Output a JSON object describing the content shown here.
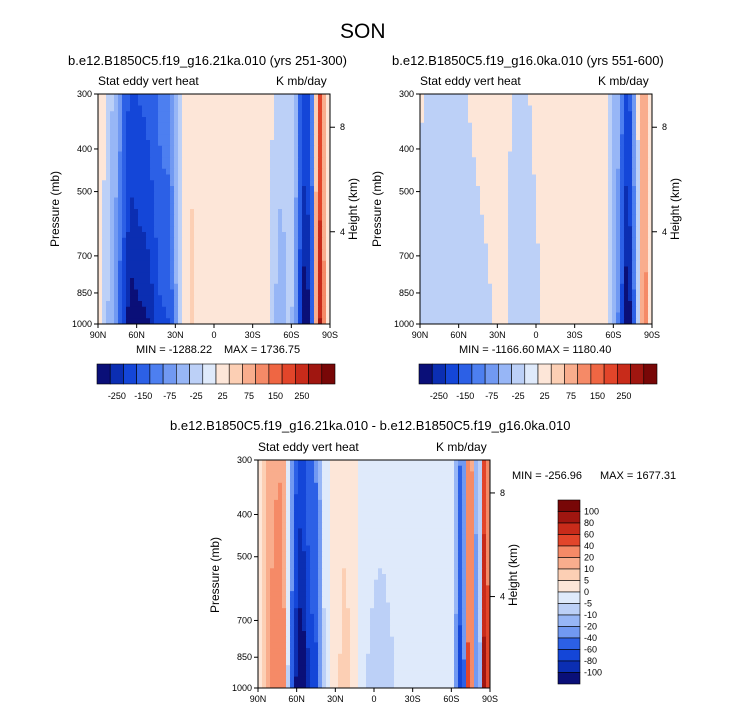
{
  "figure": {
    "title": "SON"
  },
  "palette": {
    "blues": [
      "#0a0f78",
      "#0b2eb2",
      "#1446d8",
      "#2c60e6",
      "#4d7ff0",
      "#7199f2",
      "#97b6f6",
      "#bcd0f7",
      "#dfeafb"
    ],
    "reds": [
      "#fde6d8",
      "#fccfb4",
      "#f9ad8d",
      "#f58a67",
      "#ef6643",
      "#e2452a",
      "#c82b1a",
      "#a01610",
      "#780707"
    ]
  },
  "chart_data": [
    {
      "type": "heatmap",
      "title": "b.e12.B1850C5.f19_g16.21ka.010 (yrs 251-300)",
      "left_label": "Stat eddy vert heat",
      "right_label": "K mb/day",
      "xlabel": "",
      "ylabel": "Pressure (mb)",
      "y2label": "Height (km)",
      "x_ticks": [
        "90N",
        "60N",
        "30N",
        "0",
        "30S",
        "60S",
        "90S"
      ],
      "y_ticks": [
        "300",
        "400",
        "500",
        "700",
        "850",
        "1000"
      ],
      "y2_ticks": [
        "8",
        "4"
      ],
      "min_label": "MIN = -1288.22",
      "max_label": "MAX = 1736.75",
      "colorbar_labels": [
        "-250",
        "-150",
        "-75",
        "-25",
        "25",
        "75",
        "150",
        "250"
      ],
      "colorbar_levels": [
        -250,
        -200,
        -150,
        -100,
        -75,
        -50,
        -25,
        -10,
        10,
        25,
        50,
        75,
        100,
        150,
        200,
        250
      ],
      "features": [
        {
          "lat": 55,
          "width": 18,
          "value": -220
        },
        {
          "lat": 66,
          "width": 6,
          "value": -80
        },
        {
          "lat": 35,
          "width": 5,
          "value": -60
        },
        {
          "lat": -71,
          "width": 6,
          "value": -260
        },
        {
          "lat": -52,
          "width": 8,
          "value": -30
        },
        {
          "lat": 18,
          "width": 5,
          "value": 15
        },
        {
          "lat": -82,
          "width": 3,
          "value": 180
        }
      ]
    },
    {
      "type": "heatmap",
      "title": "b.e12.B1850C5.f19_g16.0ka.010 (yrs 551-600)",
      "left_label": "Stat eddy vert heat",
      "right_label": "K mb/day",
      "xlabel": "",
      "ylabel": "Pressure (mb)",
      "y2label": "Height (km)",
      "x_ticks": [
        "90N",
        "60N",
        "30N",
        "0",
        "30S",
        "60S",
        "90S"
      ],
      "y_ticks": [
        "300",
        "400",
        "500",
        "700",
        "850",
        "1000"
      ],
      "y2_ticks": [
        "8",
        "4"
      ],
      "min_label": "MIN = -1166.60",
      "max_label": "MAX = 1180.40",
      "colorbar_labels": [
        "-250",
        "-150",
        "-75",
        "-25",
        "25",
        "75",
        "150",
        "250"
      ],
      "colorbar_levels": [
        -250,
        -200,
        -150,
        -100,
        -75,
        -50,
        -25,
        -10,
        10,
        25,
        50,
        75,
        100,
        150,
        200,
        250
      ],
      "features": [
        {
          "lat": 70,
          "width": 40,
          "value": -18
        },
        {
          "lat": 10,
          "width": 18,
          "value": -15
        },
        {
          "lat": 28,
          "width": 5,
          "value": 12
        },
        {
          "lat": -71,
          "width": 5,
          "value": -260
        },
        {
          "lat": -62,
          "width": 5,
          "value": -40
        },
        {
          "lat": -84,
          "width": 3,
          "value": 60
        }
      ]
    },
    {
      "type": "heatmap",
      "title": "b.e12.B1850C5.f19_g16.21ka.010 - b.e12.B1850C5.f19_g16.0ka.010",
      "left_label": "Stat eddy vert heat",
      "right_label": "K mb/day",
      "xlabel": "",
      "ylabel": "Pressure (mb)",
      "y2label": "Height (km)",
      "x_ticks": [
        "90N",
        "60N",
        "30N",
        "0",
        "30S",
        "60S",
        "90S"
      ],
      "y_ticks": [
        "300",
        "400",
        "500",
        "700",
        "850",
        "1000"
      ],
      "y2_ticks": [
        "8",
        "4"
      ],
      "min_label": "MIN = -256.96",
      "max_label": "MAX = 1677.31",
      "colorbar_labels": [
        "100",
        "80",
        "60",
        "40",
        "20",
        "10",
        "5",
        "0",
        "-5",
        "-10",
        "-20",
        "-40",
        "-60",
        "-80",
        "-100"
      ],
      "colorbar_levels": [
        -100,
        -80,
        -60,
        -40,
        -20,
        -10,
        -5,
        0,
        5,
        10,
        20,
        40,
        60,
        80,
        100
      ],
      "features": [
        {
          "lat": 70,
          "width": 8,
          "value": 35
        },
        {
          "lat": 57,
          "width": 9,
          "value": -110
        },
        {
          "lat": 45,
          "width": 4,
          "value": -40
        },
        {
          "lat": 80,
          "width": 6,
          "value": 15
        },
        {
          "lat": 22,
          "width": 8,
          "value": 7
        },
        {
          "lat": -5,
          "width": 20,
          "value": -6
        },
        {
          "lat": -68,
          "width": 4,
          "value": -70
        },
        {
          "lat": -74,
          "width": 4,
          "value": 60
        },
        {
          "lat": -80,
          "width": 4,
          "value": -40
        },
        {
          "lat": -86,
          "width": 3,
          "value": 90
        }
      ]
    }
  ]
}
